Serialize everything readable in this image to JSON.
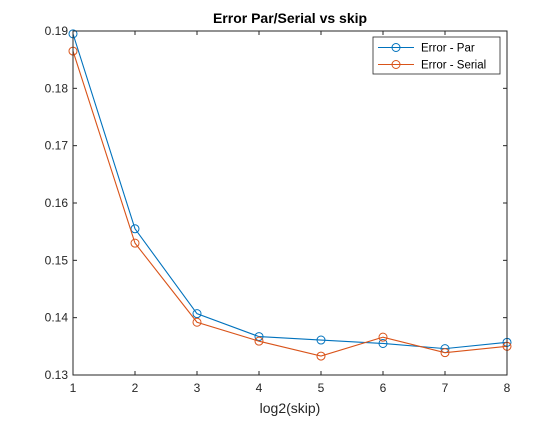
{
  "chart_data": {
    "type": "line",
    "title": "Error Par/Serial vs skip",
    "xlabel": "log2(skip)",
    "ylabel": "",
    "x": [
      1,
      2,
      3,
      4,
      5,
      6,
      7,
      8
    ],
    "xlim": [
      1,
      8
    ],
    "ylim": [
      0.13,
      0.19
    ],
    "xticks": [
      "1",
      "2",
      "3",
      "4",
      "5",
      "6",
      "7",
      "8"
    ],
    "yticks": [
      "0.13",
      "0.14",
      "0.15",
      "0.16",
      "0.17",
      "0.18",
      "0.19"
    ],
    "grid": false,
    "legend_position": "top-right",
    "series": [
      {
        "name": "Error - Par",
        "color": "#0072BD",
        "marker": "circle",
        "values": [
          0.1895,
          0.1555,
          0.1407,
          0.1367,
          0.1361,
          0.1355,
          0.1346,
          0.1357
        ]
      },
      {
        "name": "Error - Serial",
        "color": "#D95319",
        "marker": "circle",
        "values": [
          0.1865,
          0.153,
          0.1392,
          0.1359,
          0.1333,
          0.1366,
          0.1339,
          0.135
        ]
      }
    ]
  }
}
